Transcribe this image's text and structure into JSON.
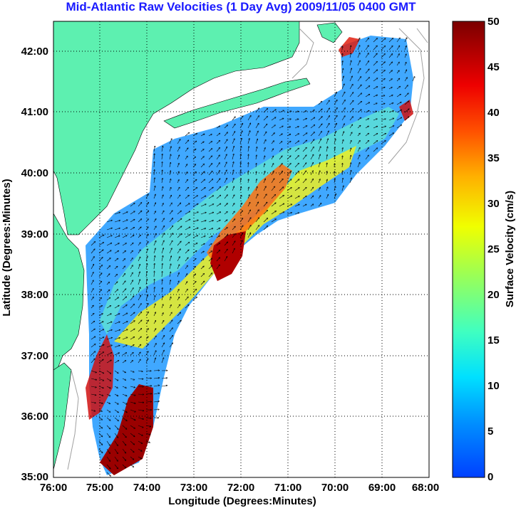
{
  "title": "Mid-Atlantic Raw Velocities (1 Day Avg) 2009/11/05 0400 GMT",
  "xlabel": "Longitude (Degrees:Minutes)",
  "ylabel": "Latitude (Degrees:Minutes)",
  "x_ticks": [
    "76:00",
    "75:00",
    "74:00",
    "73:00",
    "72:00",
    "71:00",
    "70:00",
    "69:00",
    "68:00"
  ],
  "y_ticks": [
    "42:00",
    "41:00",
    "40:00",
    "39:00",
    "38:00",
    "37:00",
    "36:00",
    "35:00"
  ],
  "colorbar": {
    "label": "Surface Velocity (cm/s)",
    "ticks": [
      "50",
      "45",
      "40",
      "35",
      "30",
      "25",
      "20",
      "15",
      "10",
      "5",
      "0"
    ],
    "range": [
      0,
      50
    ]
  },
  "colors": {
    "land": "#5df0b0",
    "title": "#1a1aff",
    "background": "#ffffff"
  },
  "map": {
    "lon_range": [
      -76,
      -68
    ],
    "lat_range": [
      35,
      42.5
    ],
    "grid": "dotted"
  }
}
